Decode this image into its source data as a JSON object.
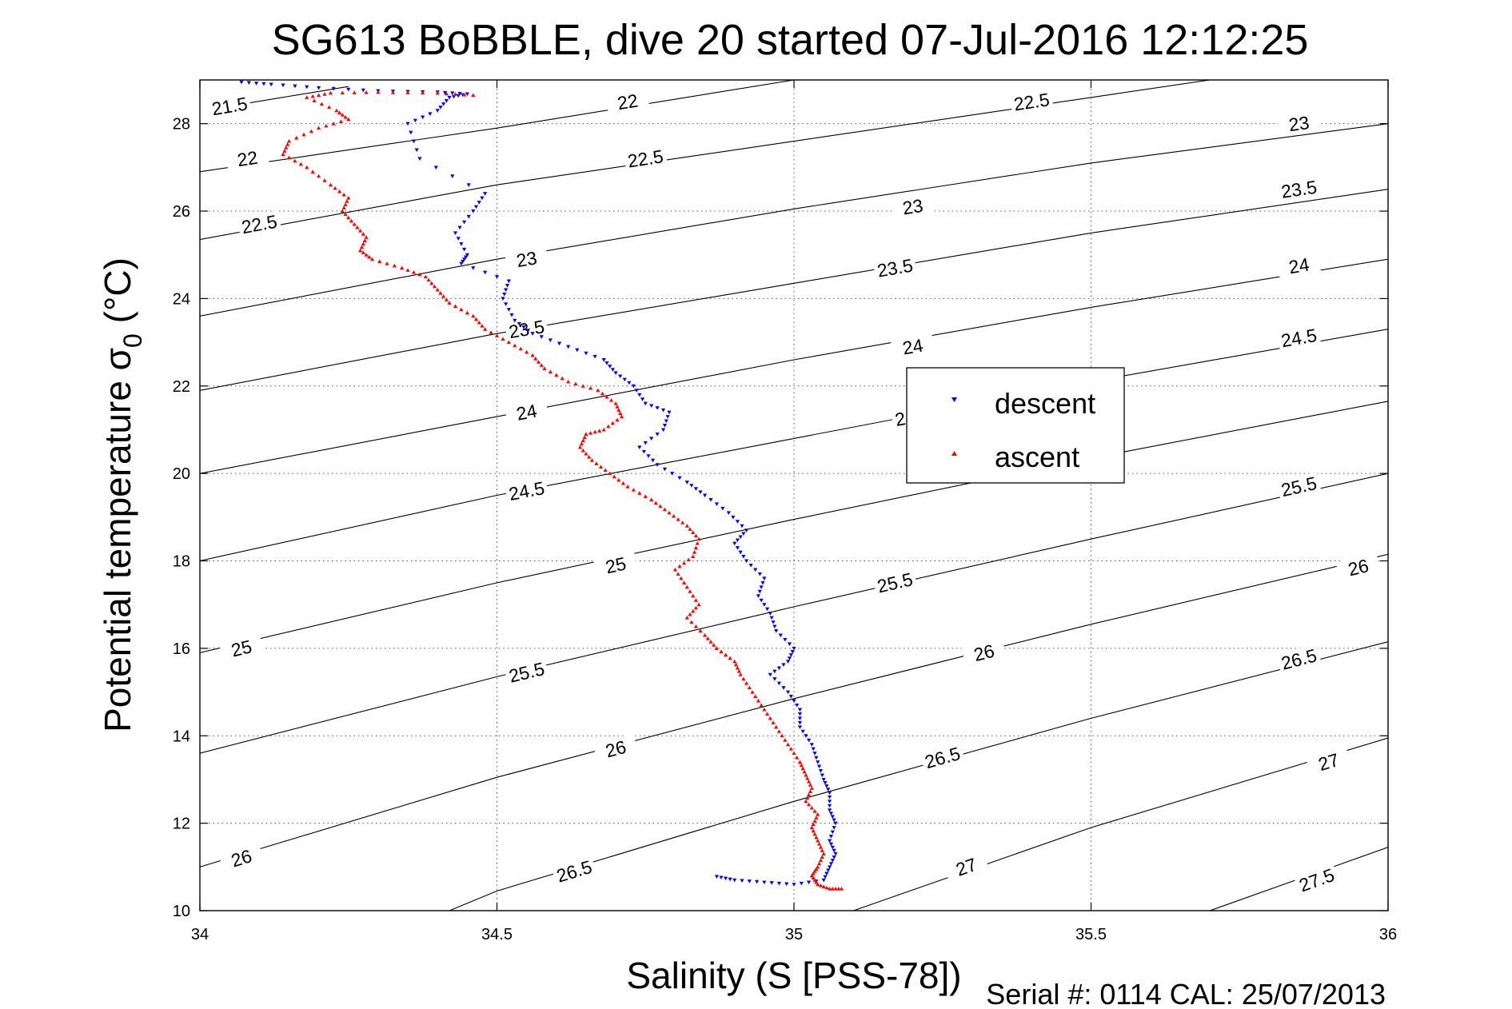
{
  "chart_data": {
    "type": "scatter",
    "title": "SG613 BoBBLE, dive 20 started 07-Jul-2016 12:12:25",
    "xlabel": "Salinity (S [PSS-78])",
    "ylabel_main": "Potential temperature σ",
    "ylabel_sub": "0",
    "ylabel_unit": " (°C)",
    "xlim": [
      34,
      36
    ],
    "ylim": [
      10,
      29
    ],
    "xticks": [
      34,
      34.5,
      35,
      35.5,
      36
    ],
    "xtick_labels": [
      "34",
      "34.5",
      "35",
      "35.5",
      "36"
    ],
    "yticks": [
      10,
      12,
      14,
      16,
      18,
      20,
      22,
      24,
      26,
      28
    ],
    "ytick_labels": [
      "10",
      "12",
      "14",
      "16",
      "18",
      "20",
      "22",
      "24",
      "26",
      "28"
    ],
    "grid": true,
    "legend_position": "center-right",
    "footer": "Serial #: 0114  CAL: 25/07/2013",
    "density_contours": [
      {
        "level": 21.5,
        "label": "21.5",
        "points": [
          [
            34.05,
            28.4
          ],
          [
            34.25,
            28.85
          ]
        ]
      },
      {
        "level": 22,
        "label": "22",
        "points": [
          [
            34.0,
            26.9
          ],
          [
            34.5,
            27.9
          ],
          [
            35.0,
            29.0
          ]
        ],
        "labels": [
          [
            34.08,
            27.2
          ],
          [
            34.72,
            28.5
          ]
        ]
      },
      {
        "level": 22.5,
        "label": "22.5",
        "points": [
          [
            34.0,
            25.35
          ],
          [
            34.5,
            26.6
          ],
          [
            35.0,
            27.6
          ],
          [
            35.5,
            28.6
          ],
          [
            35.7,
            29.0
          ]
        ],
        "labels": [
          [
            34.1,
            25.7
          ],
          [
            34.75,
            27.2
          ],
          [
            35.4,
            28.5
          ]
        ]
      },
      {
        "level": 23,
        "label": "23",
        "points": [
          [
            34.0,
            23.6
          ],
          [
            34.5,
            24.9
          ],
          [
            35.0,
            26.05
          ],
          [
            35.5,
            27.1
          ],
          [
            36.0,
            28.0
          ]
        ],
        "labels": [
          [
            34.55,
            24.9
          ],
          [
            35.2,
            26.1
          ],
          [
            35.85,
            28.0
          ]
        ]
      },
      {
        "level": 23.5,
        "label": "23.5",
        "points": [
          [
            34.0,
            21.9
          ],
          [
            34.5,
            23.2
          ],
          [
            35.0,
            24.35
          ],
          [
            35.5,
            25.5
          ],
          [
            36.0,
            26.5
          ]
        ],
        "labels": [
          [
            34.55,
            23.3
          ],
          [
            35.17,
            24.7
          ],
          [
            35.85,
            26.5
          ]
        ]
      },
      {
        "level": 24,
        "label": "24",
        "points": [
          [
            34.0,
            20.0
          ],
          [
            34.5,
            21.3
          ],
          [
            35.0,
            22.6
          ],
          [
            35.5,
            23.8
          ],
          [
            36.0,
            24.9
          ]
        ],
        "labels": [
          [
            34.55,
            21.4
          ],
          [
            35.2,
            22.9
          ],
          [
            35.85,
            24.75
          ]
        ]
      },
      {
        "level": 24.5,
        "label": "24.5",
        "points": [
          [
            34.0,
            18.0
          ],
          [
            34.5,
            19.5
          ],
          [
            35.0,
            20.8
          ],
          [
            35.5,
            22.1
          ],
          [
            36.0,
            23.3
          ]
        ],
        "labels": [
          [
            34.55,
            19.6
          ],
          [
            35.2,
            21.3
          ],
          [
            35.85,
            23.1
          ]
        ]
      },
      {
        "level": 25,
        "label": "25",
        "points": [
          [
            34.0,
            15.9
          ],
          [
            34.5,
            17.5
          ],
          [
            35.0,
            18.95
          ],
          [
            35.5,
            20.35
          ],
          [
            36.0,
            21.65
          ]
        ],
        "labels": [
          [
            34.07,
            16.0
          ],
          [
            34.7,
            17.9
          ]
        ]
      },
      {
        "level": 25.5,
        "label": "25.5",
        "points": [
          [
            34.0,
            13.6
          ],
          [
            34.5,
            15.35
          ],
          [
            35.0,
            16.95
          ],
          [
            35.5,
            18.5
          ],
          [
            36.0,
            20.0
          ]
        ],
        "labels": [
          [
            34.55,
            15.45
          ],
          [
            35.17,
            17.5
          ],
          [
            35.85,
            19.7
          ]
        ]
      },
      {
        "level": 26,
        "label": "26",
        "points": [
          [
            34.0,
            11.0
          ],
          [
            34.5,
            13.05
          ],
          [
            35.0,
            14.85
          ],
          [
            35.5,
            16.55
          ],
          [
            36.0,
            18.15
          ]
        ],
        "labels": [
          [
            34.07,
            11.2
          ],
          [
            34.7,
            13.7
          ],
          [
            35.32,
            15.9
          ],
          [
            35.95,
            17.85
          ]
        ]
      },
      {
        "level": 26.5,
        "label": "26.5",
        "points": [
          [
            34.42,
            10.0
          ],
          [
            34.5,
            10.45
          ],
          [
            35.0,
            12.5
          ],
          [
            35.5,
            14.4
          ],
          [
            36.0,
            16.15
          ]
        ],
        "labels": [
          [
            34.63,
            10.9
          ],
          [
            35.25,
            13.5
          ],
          [
            35.85,
            15.75
          ]
        ]
      },
      {
        "level": 27,
        "label": "27",
        "points": [
          [
            35.1,
            10.0
          ],
          [
            35.5,
            11.9
          ],
          [
            36.0,
            13.95
          ]
        ],
        "labels": [
          [
            35.29,
            11.0
          ],
          [
            35.9,
            13.4
          ]
        ]
      },
      {
        "level": 27.5,
        "label": "27.5",
        "points": [
          [
            35.7,
            10.0
          ],
          [
            36.0,
            11.45
          ]
        ],
        "labels": [
          [
            35.88,
            10.7
          ]
        ]
      }
    ],
    "series": [
      {
        "name": "descent",
        "color": "#0000ff",
        "marker": "triangle-down",
        "points": [
          [
            34.07,
            28.95
          ],
          [
            34.12,
            28.9
          ],
          [
            34.2,
            28.82
          ],
          [
            34.3,
            28.75
          ],
          [
            34.4,
            28.72
          ],
          [
            34.45,
            28.68
          ],
          [
            34.42,
            28.6
          ],
          [
            34.4,
            28.3
          ],
          [
            34.35,
            28.0
          ],
          [
            34.37,
            27.2
          ],
          [
            34.48,
            26.4
          ],
          [
            34.46,
            26.0
          ],
          [
            34.43,
            25.5
          ],
          [
            34.45,
            25.0
          ],
          [
            34.44,
            24.8
          ],
          [
            34.52,
            24.4
          ],
          [
            34.51,
            24.0
          ],
          [
            34.53,
            23.5
          ],
          [
            34.56,
            23.2
          ],
          [
            34.62,
            22.9
          ],
          [
            34.68,
            22.6
          ],
          [
            34.7,
            22.3
          ],
          [
            34.73,
            22.0
          ],
          [
            34.75,
            21.6
          ],
          [
            34.79,
            21.4
          ],
          [
            34.78,
            21.0
          ],
          [
            34.74,
            20.6
          ],
          [
            34.77,
            20.2
          ],
          [
            34.82,
            19.8
          ],
          [
            34.85,
            19.5
          ],
          [
            34.89,
            19.1
          ],
          [
            34.92,
            18.7
          ],
          [
            34.9,
            18.4
          ],
          [
            34.92,
            18.0
          ],
          [
            34.95,
            17.6
          ],
          [
            34.94,
            17.2
          ],
          [
            34.96,
            16.8
          ],
          [
            34.97,
            16.4
          ],
          [
            35.0,
            16.0
          ],
          [
            34.99,
            15.7
          ],
          [
            34.96,
            15.4
          ],
          [
            34.99,
            15.0
          ],
          [
            35.01,
            14.6
          ],
          [
            35.01,
            14.2
          ],
          [
            35.03,
            13.8
          ],
          [
            35.04,
            13.4
          ],
          [
            35.05,
            13.0
          ],
          [
            35.06,
            12.7
          ],
          [
            35.06,
            12.3
          ],
          [
            35.07,
            12.0
          ],
          [
            35.06,
            11.6
          ],
          [
            35.07,
            11.3
          ],
          [
            35.06,
            11.0
          ],
          [
            35.05,
            10.7
          ],
          [
            35.0,
            10.6
          ],
          [
            34.95,
            10.65
          ],
          [
            34.9,
            10.7
          ],
          [
            34.87,
            10.78
          ]
        ]
      },
      {
        "name": "ascent",
        "color": "#ff0000",
        "marker": "triangle-up",
        "points": [
          [
            34.46,
            28.65
          ],
          [
            34.4,
            28.7
          ],
          [
            34.3,
            28.72
          ],
          [
            34.22,
            28.7
          ],
          [
            34.18,
            28.6
          ],
          [
            34.23,
            28.3
          ],
          [
            34.25,
            28.1
          ],
          [
            34.2,
            27.9
          ],
          [
            34.15,
            27.6
          ],
          [
            34.14,
            27.3
          ],
          [
            34.18,
            27.0
          ],
          [
            34.22,
            26.6
          ],
          [
            34.25,
            26.3
          ],
          [
            34.24,
            26.0
          ],
          [
            34.26,
            25.7
          ],
          [
            34.28,
            25.4
          ],
          [
            34.27,
            25.1
          ],
          [
            34.29,
            24.9
          ],
          [
            34.34,
            24.7
          ],
          [
            34.38,
            24.5
          ],
          [
            34.4,
            24.2
          ],
          [
            34.42,
            23.9
          ],
          [
            34.46,
            23.6
          ],
          [
            34.48,
            23.3
          ],
          [
            34.52,
            23.0
          ],
          [
            34.56,
            22.7
          ],
          [
            34.58,
            22.4
          ],
          [
            34.62,
            22.1
          ],
          [
            34.67,
            21.9
          ],
          [
            34.7,
            21.6
          ],
          [
            34.71,
            21.3
          ],
          [
            34.68,
            21.0
          ],
          [
            34.65,
            20.9
          ],
          [
            34.64,
            20.6
          ],
          [
            34.66,
            20.3
          ],
          [
            34.69,
            20.0
          ],
          [
            34.72,
            19.7
          ],
          [
            34.76,
            19.4
          ],
          [
            34.79,
            19.1
          ],
          [
            34.82,
            18.8
          ],
          [
            34.84,
            18.5
          ],
          [
            34.83,
            18.1
          ],
          [
            34.8,
            17.8
          ],
          [
            34.82,
            17.4
          ],
          [
            34.84,
            17.0
          ],
          [
            34.82,
            16.7
          ],
          [
            34.85,
            16.3
          ],
          [
            34.87,
            16.0
          ],
          [
            34.9,
            15.7
          ],
          [
            34.91,
            15.4
          ],
          [
            34.93,
            15.0
          ],
          [
            34.95,
            14.6
          ],
          [
            34.97,
            14.2
          ],
          [
            34.99,
            13.8
          ],
          [
            35.01,
            13.4
          ],
          [
            35.02,
            13.1
          ],
          [
            35.03,
            12.8
          ],
          [
            35.02,
            12.5
          ],
          [
            35.04,
            12.2
          ],
          [
            35.03,
            11.9
          ],
          [
            35.04,
            11.6
          ],
          [
            35.05,
            11.3
          ],
          [
            35.04,
            11.0
          ],
          [
            35.03,
            10.8
          ],
          [
            35.04,
            10.6
          ],
          [
            35.06,
            10.5
          ],
          [
            35.08,
            10.5
          ]
        ]
      }
    ]
  }
}
